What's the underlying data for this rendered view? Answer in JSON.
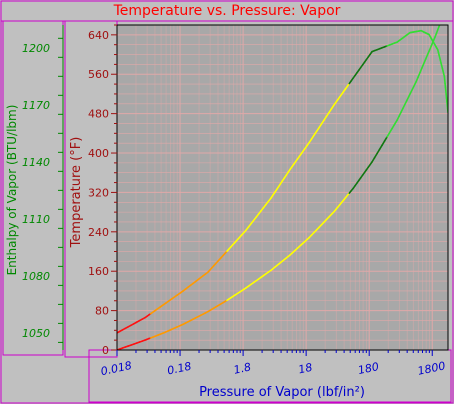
{
  "chart_data": {
    "type": "line",
    "title": "Temperature vs. Pressure: Vapor",
    "xlabel": "Pressure of Vapor (lbf/in²)",
    "ylabel": "Temperature (°F)",
    "y2label": "Enthalpy of Vapor (BTU/lbm)",
    "xscale": "log",
    "xlim": [
      0.018,
      3200
    ],
    "ylim": [
      0,
      660
    ],
    "y2lim": [
      1041,
      1212
    ],
    "grid": true,
    "x_ticks": [
      "0.018",
      "0.18",
      "1.8",
      "18",
      "180",
      "1800"
    ],
    "y_ticks": [
      "0",
      "80",
      "160",
      "240",
      "320",
      "400",
      "480",
      "560",
      "640"
    ],
    "y2_ticks": [
      "1050",
      "1080",
      "1110",
      "1140",
      "1170",
      "1200"
    ],
    "series": [
      {
        "axis": "temperature",
        "x": [
          0.018,
          0.05,
          0.1,
          0.2,
          0.5,
          1,
          2,
          5,
          10,
          20,
          50,
          100,
          200,
          500,
          1000,
          2000,
          3200
        ],
        "y": [
          0,
          20,
          35,
          52,
          78,
          101,
          126,
          162,
          193,
          228,
          281,
          328,
          382,
          467,
          545,
          636,
          705
        ]
      },
      {
        "axis": "enthalpy",
        "x": [
          0.018,
          0.05,
          0.1,
          0.2,
          0.5,
          1,
          2,
          5,
          10,
          20,
          50,
          100,
          200,
          500,
          800,
          1200,
          1600,
          2200,
          2800,
          3200
        ],
        "y": [
          1050,
          1058,
          1065,
          1072,
          1082,
          1093,
          1104,
          1121,
          1136,
          1150,
          1170,
          1184,
          1198,
          1203,
          1208,
          1209,
          1207,
          1199,
          1185,
          1166
        ]
      }
    ]
  },
  "colors": {
    "background": "#c0c0c0",
    "plot_background": "#a8a8a8",
    "grid": "#e0a8a8",
    "frame": "#cc00cc",
    "title": "#ff0000",
    "temperature_axis": "#a01010",
    "enthalpy_axis": "#008800",
    "pressure_axis": "#0000cc",
    "curve_segments": [
      "#ff1010",
      "#ff9900",
      "#ffff00",
      "#117711",
      "#33dd33"
    ]
  }
}
